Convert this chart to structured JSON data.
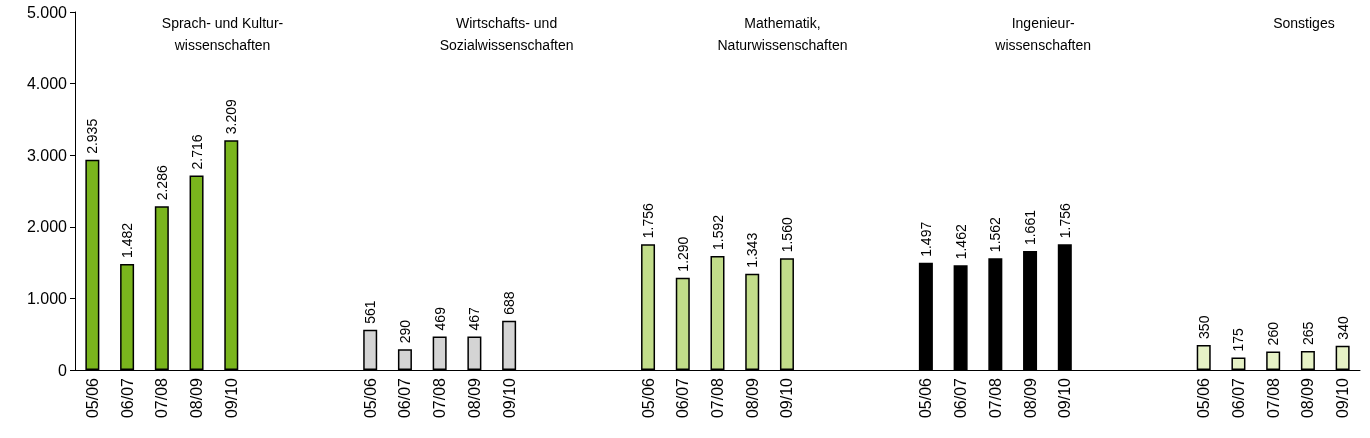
{
  "chart_data": {
    "type": "bar",
    "categories": [
      "05/06",
      "06/07",
      "07/08",
      "08/09",
      "09/10",
      null,
      null,
      null,
      "05/06",
      "06/07",
      "07/08",
      "08/09",
      "09/10",
      null,
      null,
      null,
      "05/06",
      "06/07",
      "07/08",
      "08/09",
      "09/10",
      null,
      null,
      null,
      "05/06",
      "06/07",
      "07/08",
      "08/09",
      "09/10",
      null,
      null,
      null,
      "05/06",
      "06/07",
      "07/08",
      "08/09",
      "09/10"
    ],
    "values": [
      2935,
      1482,
      2286,
      2716,
      3209,
      null,
      null,
      null,
      561,
      290,
      469,
      467,
      688,
      null,
      null,
      null,
      1756,
      1290,
      1592,
      1343,
      1560,
      null,
      null,
      null,
      1497,
      1462,
      1562,
      1661,
      1756,
      null,
      null,
      null,
      350,
      175,
      260,
      265,
      340
    ],
    "value_labels": [
      "2.935",
      "1.482",
      "2.286",
      "2.716",
      "3.209",
      null,
      null,
      null,
      "561",
      "290",
      "469",
      "467",
      "688",
      null,
      null,
      null,
      "1.756",
      "1.290",
      "1.592",
      "1.343",
      "1.560",
      null,
      null,
      null,
      "1.497",
      "1.462",
      "1.562",
      "1.661",
      "1.756",
      null,
      null,
      null,
      "350",
      "175",
      "260",
      "265",
      "340"
    ],
    "colors": [
      "#7ab51d",
      "#7ab51d",
      "#7ab51d",
      "#7ab51d",
      "#7ab51d",
      null,
      null,
      null,
      "#d4d4d4",
      "#d4d4d4",
      "#d4d4d4",
      "#d4d4d4",
      "#d4d4d4",
      null,
      null,
      null,
      "#c2dd8a",
      "#c2dd8a",
      "#c2dd8a",
      "#c2dd8a",
      "#c2dd8a",
      null,
      null,
      null,
      "#000000",
      "#000000",
      "#000000",
      "#000000",
      "#000000",
      null,
      null,
      null,
      "#e6f2c6",
      "#e6f2c6",
      "#e6f2c6",
      "#e6f2c6",
      "#e6f2c6"
    ],
    "ylim": [
      0,
      5000
    ],
    "yticks": [
      0,
      {
        "value": 1000,
        "label": "1.000"
      },
      {
        "value": 2000,
        "label": "2.000"
      },
      {
        "value": 3000,
        "label": "3.000"
      },
      {
        "value": 4000,
        "label": "4.000"
      },
      {
        "value": 5000,
        "label": "5.000"
      }
    ],
    "annotations": [
      "Sprach- und Kultur-\nwissenschaften",
      "Wirtschafts- und\nSozialwissenschaften",
      "Mathematik,\nNaturwissenschaften",
      "Ingenieur-\nwissenschaften",
      "Sonstiges"
    ],
    "grid": false
  }
}
